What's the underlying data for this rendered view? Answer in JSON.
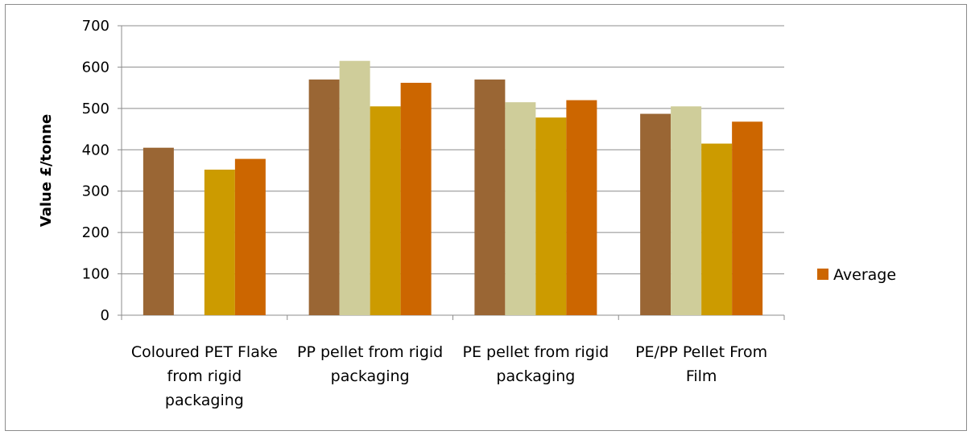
{
  "chart_data": {
    "type": "bar",
    "title": "",
    "xlabel": "",
    "ylabel": "Value  £/tonne",
    "ylim": [
      0,
      700
    ],
    "yticks": [
      0,
      100,
      200,
      300,
      400,
      500,
      600,
      700
    ],
    "grid": true,
    "legend_position": "right",
    "categories": [
      [
        "Coloured PET Flake",
        "from rigid",
        "packaging"
      ],
      [
        "PP pellet from rigid",
        "packaging"
      ],
      [
        "PE pellet from rigid",
        "packaging"
      ],
      [
        "PE/PP Pellet From",
        "Film"
      ]
    ],
    "series": [
      {
        "color": "#9a6634",
        "values": [
          405,
          570,
          570,
          487
        ]
      },
      {
        "color": "#cfcd9a",
        "values": [
          null,
          615,
          515,
          505
        ]
      },
      {
        "color": "#cc9b00",
        "values": [
          352,
          505,
          478,
          415
        ]
      },
      {
        "name": "Average",
        "color": "#cc6600",
        "values": [
          378,
          562,
          520,
          468
        ]
      }
    ]
  }
}
